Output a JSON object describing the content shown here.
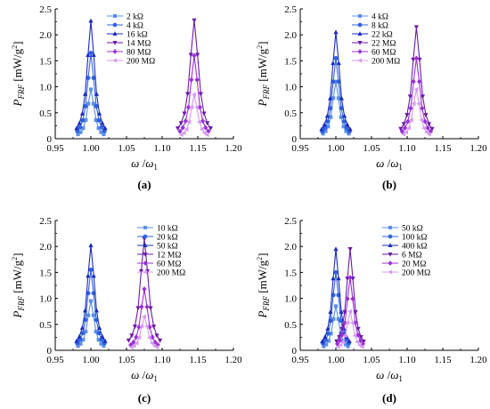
{
  "chart_data": [
    {
      "type": "line",
      "panel_label": "(a)",
      "ylabel": "P_FRF [mW/g²]",
      "ylabel_parts": {
        "main": "P",
        "sub": "FRF",
        "unit_open": " [mW/g",
        "sup": "2",
        "unit_close": "]"
      },
      "xlabel_parts": {
        "w": "ω",
        "slash": " /",
        "w1": "ω",
        "sub": "1"
      },
      "xlim": [
        0.95,
        1.2
      ],
      "ylim": [
        0,
        2.5
      ],
      "xticks": [
        "0.95",
        "1.00",
        "1.05",
        "1.10",
        "1.15",
        "1.20"
      ],
      "yticks": [
        "0",
        "0.5",
        "1.0",
        "1.5",
        "2.0",
        "2.5"
      ],
      "legend": "top-center",
      "series": [
        {
          "name": "2 kΩ",
          "marker": "square",
          "color": "#5b8fe8",
          "peak_x": 1.0,
          "peak_y": 0.95,
          "width": 0.018
        },
        {
          "name": "4 kΩ",
          "marker": "circle",
          "color": "#2f63df",
          "peak_x": 1.0,
          "peak_y": 1.65,
          "width": 0.019
        },
        {
          "name": "16 kΩ",
          "marker": "triangle-up",
          "color": "#1a2bbf",
          "peak_x": 1.0,
          "peak_y": 2.27,
          "width": 0.02
        },
        {
          "name": "14 MΩ",
          "marker": "triangle-down",
          "color": "#6a1aa8",
          "peak_x": 1.145,
          "peak_y": 2.28,
          "width": 0.023
        },
        {
          "name": "80 MΩ",
          "marker": "diamond",
          "color": "#9a2fd6",
          "peak_x": 1.145,
          "peak_y": 1.6,
          "width": 0.02
        },
        {
          "name": "200 MΩ",
          "marker": "triangle-left",
          "color": "#d49af2",
          "peak_x": 1.145,
          "peak_y": 0.85,
          "width": 0.018
        }
      ]
    },
    {
      "type": "line",
      "panel_label": "(b)",
      "ylabel": "P_FRF [mW/g²]",
      "ylabel_parts": {
        "main": "P",
        "sub": "FRF",
        "unit_open": " [mW/g",
        "sup": "2",
        "unit_close": "]"
      },
      "xlabel_parts": {
        "w": "ω",
        "slash": " /",
        "w1": "ω",
        "sub": "1"
      },
      "xlim": [
        0.95,
        1.2
      ],
      "ylim": [
        0,
        2.5
      ],
      "xticks": [
        "0.95",
        "1.00",
        "1.05",
        "1.10",
        "1.15",
        "1.20"
      ],
      "yticks": [
        "0",
        "0.5",
        "1.0",
        "1.5",
        "2.0",
        "2.5"
      ],
      "legend": "top-center",
      "series": [
        {
          "name": "4 kΩ",
          "marker": "square",
          "color": "#5b8fe8",
          "peak_x": 1.0,
          "peak_y": 1.1,
          "width": 0.018
        },
        {
          "name": "8 kΩ",
          "marker": "circle",
          "color": "#2f63df",
          "peak_x": 1.0,
          "peak_y": 1.55,
          "width": 0.019
        },
        {
          "name": "22 kΩ",
          "marker": "triangle-up",
          "color": "#1a2bbf",
          "peak_x": 1.0,
          "peak_y": 2.05,
          "width": 0.02
        },
        {
          "name": "22 MΩ",
          "marker": "triangle-down",
          "color": "#6a1aa8",
          "peak_x": 1.113,
          "peak_y": 2.15,
          "width": 0.022
        },
        {
          "name": "60 MΩ",
          "marker": "diamond",
          "color": "#9a2fd6",
          "peak_x": 1.113,
          "peak_y": 1.55,
          "width": 0.02
        },
        {
          "name": "200 MΩ",
          "marker": "triangle-left",
          "color": "#d49af2",
          "peak_x": 1.113,
          "peak_y": 0.95,
          "width": 0.018
        }
      ]
    },
    {
      "type": "line",
      "panel_label": "(c)",
      "ylabel": "P_FRF [mW/g²]",
      "ylabel_parts": {
        "main": "P",
        "sub": "FRF",
        "unit_open": " [mW/g",
        "sup": "2",
        "unit_close": "]"
      },
      "xlabel_parts": {
        "w": "ω",
        "slash": " /",
        "w1": "ω",
        "sub": "1"
      },
      "xlim": [
        0.95,
        1.2
      ],
      "ylim": [
        0,
        2.5
      ],
      "xticks": [
        "0.95",
        "1.00",
        "1.05",
        "1.10",
        "1.15",
        "1.20"
      ],
      "yticks": [
        "0",
        "0.5",
        "1.0",
        "1.5",
        "2.0",
        "2.5"
      ],
      "legend": "top-right",
      "series": [
        {
          "name": "10 kΩ",
          "marker": "square",
          "color": "#5b8fe8",
          "peak_x": 1.0,
          "peak_y": 0.95,
          "width": 0.018
        },
        {
          "name": "20 kΩ",
          "marker": "circle",
          "color": "#2f63df",
          "peak_x": 1.0,
          "peak_y": 1.55,
          "width": 0.019
        },
        {
          "name": "50 kΩ",
          "marker": "triangle-up",
          "color": "#1a2bbf",
          "peak_x": 1.0,
          "peak_y": 2.02,
          "width": 0.02
        },
        {
          "name": "12 MΩ",
          "marker": "triangle-down",
          "color": "#6a1aa8",
          "peak_x": 1.075,
          "peak_y": 2.15,
          "width": 0.022
        },
        {
          "name": "60 MΩ",
          "marker": "diamond",
          "color": "#9a2fd6",
          "peak_x": 1.075,
          "peak_y": 1.18,
          "width": 0.019
        },
        {
          "name": "200 MΩ",
          "marker": "triangle-left",
          "color": "#d49af2",
          "peak_x": 1.075,
          "peak_y": 0.65,
          "width": 0.018
        }
      ]
    },
    {
      "type": "line",
      "panel_label": "(d)",
      "ylabel": "P_FRF [mW/g²]",
      "ylabel_parts": {
        "main": "P",
        "sub": "FRF",
        "unit_open": " [mW/g",
        "sup": "2",
        "unit_close": "]"
      },
      "xlabel_parts": {
        "w": "ω",
        "slash": " /",
        "w1": "ω",
        "sub": "1"
      },
      "xlim": [
        0.95,
        1.2
      ],
      "ylim": [
        0,
        2.5
      ],
      "xticks": [
        "0.95",
        "1.00",
        "1.05",
        "1.10",
        "1.15",
        "1.20"
      ],
      "yticks": [
        "0",
        "0.5",
        "1.0",
        "1.5",
        "2.0",
        "2.5"
      ],
      "legend": "top-right",
      "series": [
        {
          "name": "50 kΩ",
          "marker": "square",
          "color": "#5b8fe8",
          "peak_x": 1.0,
          "peak_y": 0.85,
          "width": 0.017
        },
        {
          "name": "100 kΩ",
          "marker": "circle",
          "color": "#2f63df",
          "peak_x": 1.0,
          "peak_y": 1.5,
          "width": 0.018
        },
        {
          "name": "400 kΩ",
          "marker": "triangle-up",
          "color": "#1a2bbf",
          "peak_x": 1.0,
          "peak_y": 1.95,
          "width": 0.019
        },
        {
          "name": "6 MΩ",
          "marker": "triangle-down",
          "color": "#6a1aa8",
          "peak_x": 1.02,
          "peak_y": 1.95,
          "width": 0.019
        },
        {
          "name": "20 MΩ",
          "marker": "diamond",
          "color": "#9a2fd6",
          "peak_x": 1.02,
          "peak_y": 1.4,
          "width": 0.018
        },
        {
          "name": "200 MΩ",
          "marker": "triangle-left",
          "color": "#d49af2",
          "peak_x": 1.02,
          "peak_y": 0.75,
          "width": 0.017
        }
      ]
    }
  ]
}
